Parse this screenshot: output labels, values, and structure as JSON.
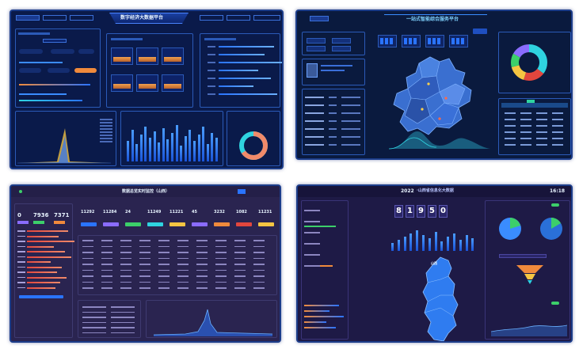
{
  "panel1": {
    "title": "数字经济大数据平台",
    "tabs": [
      "",
      "",
      "",
      "",
      "",
      ""
    ],
    "numbers": [
      "",
      "",
      ""
    ]
  },
  "panel2": {
    "title": "一站式智能综合服务平台",
    "button": ""
  },
  "panel3": {
    "title": "数据总览实时监控（山西）",
    "stats": [
      "0",
      "7936",
      "7371"
    ],
    "metrics": [
      "11292",
      "11284",
      "24",
      "11249",
      "11221",
      "45",
      "3232",
      "1082",
      "11231"
    ]
  },
  "panel4": {
    "year": "2022",
    "title": "·山西省信息化大数据",
    "time": "16:18",
    "big_number": "81950",
    "region": "山西"
  },
  "colors": {
    "accent_blue": "#2a74ff",
    "orange": "#f08a3c",
    "cyan": "#2fd3e0",
    "yellow": "#f5c542",
    "green": "#3ccf6a",
    "purple": "#8a6cff",
    "red": "#e2463d"
  }
}
